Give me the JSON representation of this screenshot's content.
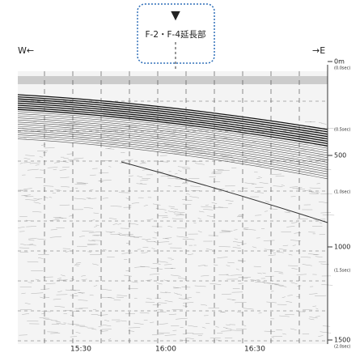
{
  "annotation": {
    "marker": "▼",
    "label": "F-2・F-4延長部"
  },
  "direction": {
    "west": "W←",
    "east": "→E"
  },
  "depth_axis": {
    "labels": [
      "0m",
      "500",
      "1000",
      "1500"
    ],
    "time_labels": [
      "(0.0sec)",
      "(0.5sec)",
      "(1.0sec)",
      "(1.5sec)",
      "(2.0sec)"
    ]
  },
  "time_axis": [
    "15:30",
    "16:00",
    "16:30"
  ]
}
